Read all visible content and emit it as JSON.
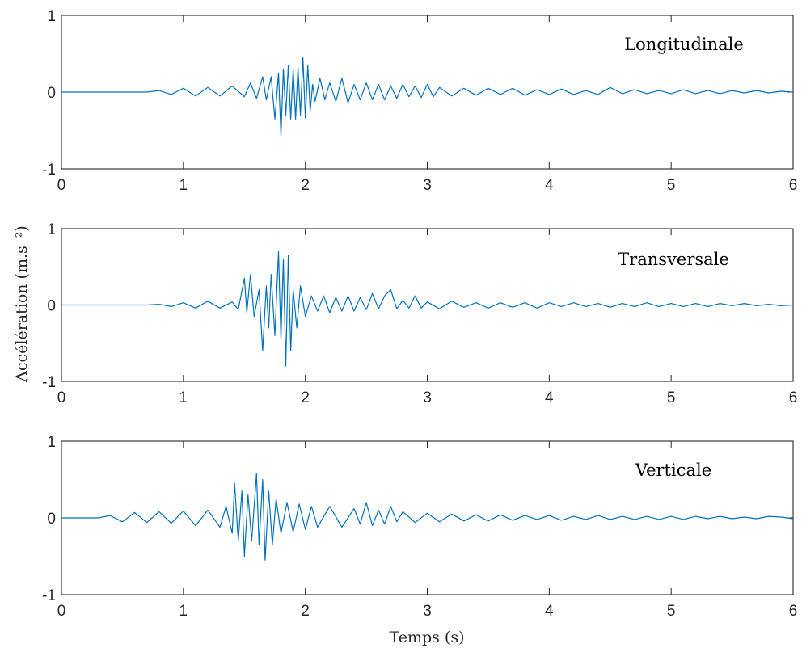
{
  "chart_data": [
    {
      "type": "line",
      "title": "Longitudinale",
      "xlim": [
        0,
        6
      ],
      "ylim": [
        -1,
        1
      ],
      "xticks": [
        "0",
        "1",
        "2",
        "3",
        "4",
        "5",
        "6"
      ],
      "yticks": [
        "1",
        "0",
        "-1"
      ],
      "series": [
        {
          "color": "#0072BD",
          "points": [
            [
              0,
              0
            ],
            [
              0.7,
              0
            ],
            [
              0.8,
              0.02
            ],
            [
              0.9,
              -0.03
            ],
            [
              1.0,
              0.05
            ],
            [
              1.1,
              -0.05
            ],
            [
              1.2,
              0.06
            ],
            [
              1.3,
              -0.05
            ],
            [
              1.4,
              0.08
            ],
            [
              1.5,
              -0.06
            ],
            [
              1.55,
              0.12
            ],
            [
              1.6,
              -0.08
            ],
            [
              1.65,
              0.2
            ],
            [
              1.68,
              -0.1
            ],
            [
              1.72,
              0.2
            ],
            [
              1.75,
              -0.35
            ],
            [
              1.78,
              0.25
            ],
            [
              1.8,
              -0.57
            ],
            [
              1.82,
              0.3
            ],
            [
              1.84,
              -0.3
            ],
            [
              1.86,
              0.35
            ],
            [
              1.88,
              -0.35
            ],
            [
              1.9,
              0.3
            ],
            [
              1.92,
              -0.35
            ],
            [
              1.94,
              0.32
            ],
            [
              1.96,
              -0.3
            ],
            [
              1.98,
              0.45
            ],
            [
              2.0,
              -0.34
            ],
            [
              2.02,
              0.35
            ],
            [
              2.04,
              -0.25
            ],
            [
              2.06,
              0.1
            ],
            [
              2.08,
              -0.12
            ],
            [
              2.12,
              0.18
            ],
            [
              2.16,
              -0.1
            ],
            [
              2.2,
              0.12
            ],
            [
              2.25,
              -0.12
            ],
            [
              2.3,
              0.18
            ],
            [
              2.35,
              -0.14
            ],
            [
              2.4,
              0.1
            ],
            [
              2.45,
              -0.1
            ],
            [
              2.5,
              0.12
            ],
            [
              2.55,
              -0.1
            ],
            [
              2.6,
              0.1
            ],
            [
              2.65,
              -0.1
            ],
            [
              2.7,
              0.08
            ],
            [
              2.75,
              -0.08
            ],
            [
              2.8,
              0.1
            ],
            [
              2.85,
              -0.06
            ],
            [
              2.9,
              0.08
            ],
            [
              2.95,
              -0.07
            ],
            [
              3.0,
              0.1
            ],
            [
              3.05,
              -0.06
            ],
            [
              3.1,
              0.06
            ],
            [
              3.2,
              -0.05
            ],
            [
              3.3,
              0.05
            ],
            [
              3.4,
              -0.04
            ],
            [
              3.5,
              0.05
            ],
            [
              3.6,
              -0.03
            ],
            [
              3.7,
              0.05
            ],
            [
              3.8,
              -0.04
            ],
            [
              3.9,
              0.03
            ],
            [
              4.0,
              -0.03
            ],
            [
              4.1,
              0.04
            ],
            [
              4.2,
              -0.03
            ],
            [
              4.3,
              0.02
            ],
            [
              4.4,
              -0.03
            ],
            [
              4.5,
              0.06
            ],
            [
              4.6,
              -0.02
            ],
            [
              4.7,
              0.03
            ],
            [
              4.8,
              -0.02
            ],
            [
              4.9,
              0.02
            ],
            [
              5.0,
              -0.02
            ],
            [
              5.1,
              0.03
            ],
            [
              5.2,
              -0.02
            ],
            [
              5.3,
              0.02
            ],
            [
              5.4,
              -0.02
            ],
            [
              5.5,
              0.02
            ],
            [
              5.6,
              -0.01
            ],
            [
              5.7,
              0.02
            ],
            [
              5.8,
              -0.01
            ],
            [
              5.9,
              0.01
            ],
            [
              6.0,
              0
            ]
          ]
        }
      ]
    },
    {
      "type": "line",
      "title": "Transversale",
      "xlim": [
        0,
        6
      ],
      "ylim": [
        -1,
        1
      ],
      "xticks": [
        "0",
        "1",
        "2",
        "3",
        "4",
        "5",
        "6"
      ],
      "yticks": [
        "1",
        "0",
        "-1"
      ],
      "series": [
        {
          "color": "#0072BD",
          "points": [
            [
              0,
              0
            ],
            [
              0.7,
              0
            ],
            [
              0.8,
              0.01
            ],
            [
              0.9,
              -0.02
            ],
            [
              1.0,
              0.03
            ],
            [
              1.1,
              -0.04
            ],
            [
              1.2,
              0.05
            ],
            [
              1.3,
              -0.04
            ],
            [
              1.4,
              0.04
            ],
            [
              1.45,
              -0.06
            ],
            [
              1.5,
              0.35
            ],
            [
              1.52,
              -0.1
            ],
            [
              1.55,
              0.4
            ],
            [
              1.58,
              -0.15
            ],
            [
              1.62,
              0.2
            ],
            [
              1.65,
              -0.6
            ],
            [
              1.68,
              0.25
            ],
            [
              1.7,
              -0.3
            ],
            [
              1.72,
              0.4
            ],
            [
              1.75,
              -0.4
            ],
            [
              1.78,
              0.7
            ],
            [
              1.8,
              -0.45
            ],
            [
              1.82,
              0.6
            ],
            [
              1.84,
              -0.8
            ],
            [
              1.86,
              0.65
            ],
            [
              1.88,
              -0.6
            ],
            [
              1.9,
              0.2
            ],
            [
              1.93,
              -0.3
            ],
            [
              1.96,
              0.25
            ],
            [
              2.0,
              -0.15
            ],
            [
              2.05,
              0.12
            ],
            [
              2.1,
              -0.08
            ],
            [
              2.15,
              0.12
            ],
            [
              2.2,
              -0.1
            ],
            [
              2.25,
              0.1
            ],
            [
              2.3,
              -0.08
            ],
            [
              2.35,
              0.12
            ],
            [
              2.4,
              -0.08
            ],
            [
              2.45,
              0.1
            ],
            [
              2.5,
              -0.06
            ],
            [
              2.55,
              0.15
            ],
            [
              2.6,
              -0.05
            ],
            [
              2.65,
              0.12
            ],
            [
              2.7,
              0.2
            ],
            [
              2.75,
              -0.05
            ],
            [
              2.8,
              0.06
            ],
            [
              2.85,
              -0.04
            ],
            [
              2.9,
              0.12
            ],
            [
              2.95,
              -0.04
            ],
            [
              3.0,
              0.04
            ],
            [
              3.1,
              -0.05
            ],
            [
              3.2,
              0.05
            ],
            [
              3.3,
              -0.03
            ],
            [
              3.4,
              0.03
            ],
            [
              3.5,
              -0.04
            ],
            [
              3.6,
              0.03
            ],
            [
              3.7,
              -0.03
            ],
            [
              3.8,
              0.03
            ],
            [
              3.9,
              -0.04
            ],
            [
              4.0,
              0.03
            ],
            [
              4.1,
              -0.02
            ],
            [
              4.2,
              0.03
            ],
            [
              4.3,
              -0.02
            ],
            [
              4.4,
              0.02
            ],
            [
              4.5,
              -0.03
            ],
            [
              4.6,
              0.02
            ],
            [
              4.7,
              -0.02
            ],
            [
              4.8,
              0.03
            ],
            [
              4.9,
              -0.02
            ],
            [
              5.0,
              0.02
            ],
            [
              5.1,
              -0.02
            ],
            [
              5.2,
              0.02
            ],
            [
              5.3,
              -0.02
            ],
            [
              5.4,
              0.02
            ],
            [
              5.5,
              -0.01
            ],
            [
              5.6,
              0.02
            ],
            [
              5.7,
              -0.01
            ],
            [
              5.8,
              0.01
            ],
            [
              5.9,
              -0.01
            ],
            [
              6.0,
              0
            ]
          ]
        }
      ]
    },
    {
      "type": "line",
      "title": "Verticale",
      "xlim": [
        0,
        6
      ],
      "ylim": [
        -1,
        1
      ],
      "xticks": [
        "0",
        "1",
        "2",
        "3",
        "4",
        "5",
        "6"
      ],
      "yticks": [
        "1",
        "0",
        "-1"
      ],
      "series": [
        {
          "color": "#0072BD",
          "points": [
            [
              0,
              0
            ],
            [
              0.3,
              0
            ],
            [
              0.4,
              0.03
            ],
            [
              0.5,
              -0.05
            ],
            [
              0.6,
              0.07
            ],
            [
              0.7,
              -0.06
            ],
            [
              0.8,
              0.08
            ],
            [
              0.9,
              -0.07
            ],
            [
              1.0,
              0.09
            ],
            [
              1.1,
              -0.1
            ],
            [
              1.2,
              0.1
            ],
            [
              1.3,
              -0.12
            ],
            [
              1.35,
              0.15
            ],
            [
              1.4,
              -0.2
            ],
            [
              1.42,
              0.45
            ],
            [
              1.45,
              -0.3
            ],
            [
              1.48,
              0.35
            ],
            [
              1.5,
              -0.5
            ],
            [
              1.53,
              0.3
            ],
            [
              1.56,
              -0.3
            ],
            [
              1.6,
              0.58
            ],
            [
              1.62,
              -0.35
            ],
            [
              1.65,
              0.5
            ],
            [
              1.67,
              -0.55
            ],
            [
              1.7,
              0.35
            ],
            [
              1.73,
              -0.35
            ],
            [
              1.76,
              0.25
            ],
            [
              1.8,
              -0.2
            ],
            [
              1.85,
              0.2
            ],
            [
              1.9,
              -0.18
            ],
            [
              1.95,
              0.18
            ],
            [
              2.0,
              -0.15
            ],
            [
              2.05,
              0.15
            ],
            [
              2.1,
              -0.12
            ],
            [
              2.2,
              0.15
            ],
            [
              2.3,
              -0.12
            ],
            [
              2.4,
              0.12
            ],
            [
              2.45,
              -0.08
            ],
            [
              2.5,
              0.2
            ],
            [
              2.55,
              -0.1
            ],
            [
              2.6,
              0.1
            ],
            [
              2.65,
              -0.08
            ],
            [
              2.7,
              0.15
            ],
            [
              2.75,
              -0.05
            ],
            [
              2.8,
              0.08
            ],
            [
              2.9,
              -0.06
            ],
            [
              3.0,
              0.06
            ],
            [
              3.1,
              -0.05
            ],
            [
              3.2,
              0.05
            ],
            [
              3.3,
              -0.04
            ],
            [
              3.4,
              0.04
            ],
            [
              3.5,
              -0.04
            ],
            [
              3.6,
              0.04
            ],
            [
              3.7,
              -0.03
            ],
            [
              3.8,
              0.03
            ],
            [
              3.9,
              -0.02
            ],
            [
              4.0,
              0.03
            ],
            [
              4.1,
              -0.03
            ],
            [
              4.2,
              0.02
            ],
            [
              4.3,
              -0.02
            ],
            [
              4.4,
              0.03
            ],
            [
              4.5,
              -0.02
            ],
            [
              4.6,
              0.02
            ],
            [
              4.7,
              -0.02
            ],
            [
              4.8,
              0.02
            ],
            [
              4.9,
              -0.02
            ],
            [
              5.0,
              0.02
            ],
            [
              5.1,
              -0.02
            ],
            [
              5.2,
              0.02
            ],
            [
              5.3,
              -0.01
            ],
            [
              5.4,
              0.02
            ],
            [
              5.5,
              -0.01
            ],
            [
              5.6,
              0.01
            ],
            [
              5.7,
              -0.01
            ],
            [
              5.8,
              0.02
            ],
            [
              5.9,
              0.01
            ],
            [
              6.0,
              -0.01
            ]
          ]
        }
      ]
    }
  ],
  "shared_labels": {
    "ylabel": "Accélération (m.s⁻²)",
    "xlabel": "Temps (s)"
  }
}
